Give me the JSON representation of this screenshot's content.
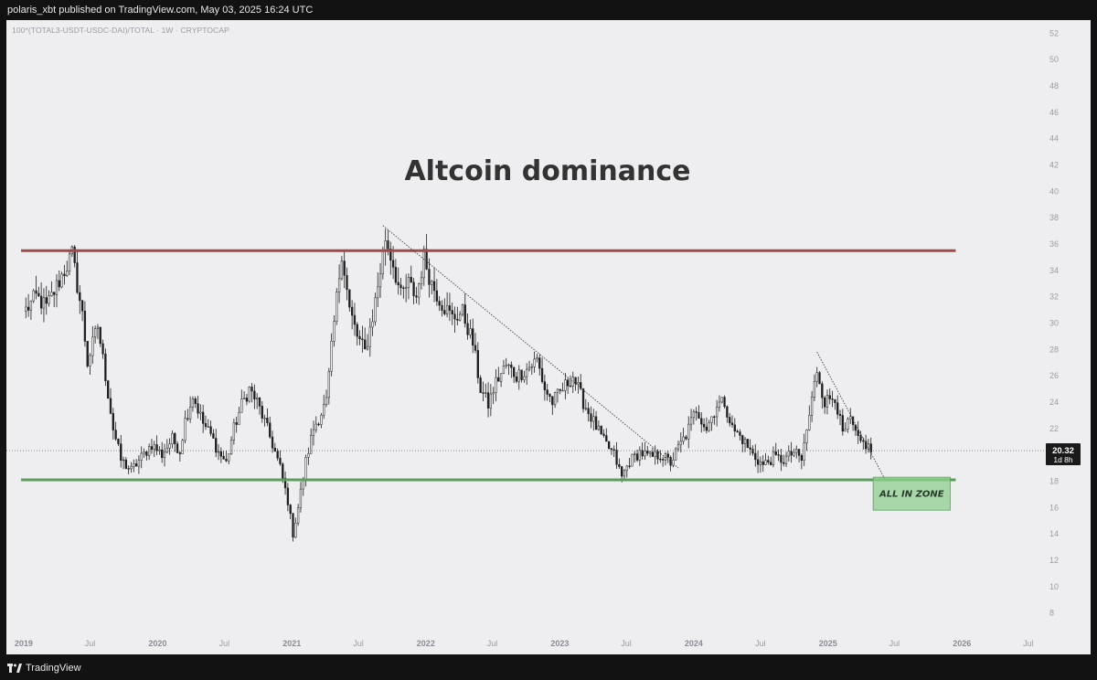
{
  "header": {
    "publish_line": "polaris_xbt published on TradingView.com, May 03, 2025 16:24 UTC"
  },
  "footer": {
    "brand": "TradingView",
    "logo_icon": "tradingview-logo-icon"
  },
  "chart_data": {
    "type": "candlestick",
    "symbol": "100*(TOTAL3-USDT-USDC-DAI)/TOTAL · 1W · CRYPTOCAP",
    "title": "Altcoin dominance",
    "xlabel": "",
    "ylabel": "",
    "ylim": [
      7,
      53
    ],
    "xlim": [
      "2018-11-15",
      "2026-08-15"
    ],
    "y_ticks": [
      8,
      10,
      12,
      14,
      16,
      18,
      20,
      22,
      24,
      26,
      28,
      30,
      32,
      34,
      36,
      38,
      40,
      42,
      44,
      46,
      48,
      50,
      52
    ],
    "x_ticks": [
      {
        "label": "2019",
        "date": "2019-01-01",
        "bold": true
      },
      {
        "label": "Jul",
        "date": "2019-07-01",
        "bold": false
      },
      {
        "label": "2020",
        "date": "2020-01-01",
        "bold": true
      },
      {
        "label": "Jul",
        "date": "2020-07-01",
        "bold": false
      },
      {
        "label": "2021",
        "date": "2021-01-01",
        "bold": true
      },
      {
        "label": "Jul",
        "date": "2021-07-01",
        "bold": false
      },
      {
        "label": "2022",
        "date": "2022-01-01",
        "bold": true
      },
      {
        "label": "Jul",
        "date": "2022-07-01",
        "bold": false
      },
      {
        "label": "2023",
        "date": "2023-01-01",
        "bold": true
      },
      {
        "label": "Jul",
        "date": "2023-07-01",
        "bold": false
      },
      {
        "label": "2024",
        "date": "2024-01-01",
        "bold": true
      },
      {
        "label": "Jul",
        "date": "2024-07-01",
        "bold": false
      },
      {
        "label": "2025",
        "date": "2025-01-01",
        "bold": true
      },
      {
        "label": "Jul",
        "date": "2025-07-01",
        "bold": false
      },
      {
        "label": "2026",
        "date": "2026-01-01",
        "bold": true
      },
      {
        "label": "Jul",
        "date": "2026-07-01",
        "bold": false
      }
    ],
    "series_path": [
      [
        "2019-01-07",
        31.0
      ],
      [
        "2019-02-04",
        32.0
      ],
      [
        "2019-03-04",
        31.2
      ],
      [
        "2019-04-08",
        33.2
      ],
      [
        "2019-05-13",
        35.2
      ],
      [
        "2019-06-10",
        30.6
      ],
      [
        "2019-06-24",
        27.0
      ],
      [
        "2019-07-22",
        29.8
      ],
      [
        "2019-08-12",
        26.0
      ],
      [
        "2019-09-02",
        22.0
      ],
      [
        "2019-09-23",
        19.6
      ],
      [
        "2019-10-21",
        18.8
      ],
      [
        "2019-11-18",
        19.8
      ],
      [
        "2019-12-16",
        20.8
      ],
      [
        "2020-01-13",
        20.0
      ],
      [
        "2020-02-10",
        21.2
      ],
      [
        "2020-03-02",
        20.3
      ],
      [
        "2020-03-16",
        22.6
      ],
      [
        "2020-04-06",
        24.5
      ],
      [
        "2020-05-04",
        22.4
      ],
      [
        "2020-05-25",
        21.5
      ],
      [
        "2020-06-15",
        20.2
      ],
      [
        "2020-07-06",
        19.4
      ],
      [
        "2020-07-27",
        22.0
      ],
      [
        "2020-08-17",
        23.8
      ],
      [
        "2020-09-07",
        25.0
      ],
      [
        "2020-09-28",
        24.0
      ],
      [
        "2020-10-19",
        22.5
      ],
      [
        "2020-11-09",
        20.8
      ],
      [
        "2020-11-30",
        19.0
      ],
      [
        "2020-12-21",
        16.5
      ],
      [
        "2021-01-04",
        14.0
      ],
      [
        "2021-01-18",
        16.0
      ],
      [
        "2021-02-08",
        19.5
      ],
      [
        "2021-03-01",
        22.0
      ],
      [
        "2021-04-05",
        24.0
      ],
      [
        "2021-04-26",
        30.0
      ],
      [
        "2021-05-17",
        35.5
      ],
      [
        "2021-06-07",
        31.0
      ],
      [
        "2021-06-28",
        29.0
      ],
      [
        "2021-07-19",
        27.8
      ],
      [
        "2021-08-09",
        30.5
      ],
      [
        "2021-08-30",
        34.0
      ],
      [
        "2021-09-13",
        36.5
      ],
      [
        "2021-10-04",
        34.5
      ],
      [
        "2021-10-25",
        32.0
      ],
      [
        "2021-11-15",
        33.0
      ],
      [
        "2021-12-06",
        32.0
      ],
      [
        "2021-12-27",
        35.0
      ],
      [
        "2022-01-17",
        33.0
      ],
      [
        "2022-02-14",
        31.5
      ],
      [
        "2022-03-14",
        30.4
      ],
      [
        "2022-04-11",
        30.8
      ],
      [
        "2022-05-09",
        28.5
      ],
      [
        "2022-05-30",
        25.0
      ],
      [
        "2022-06-20",
        23.8
      ],
      [
        "2022-07-11",
        25.5
      ],
      [
        "2022-08-08",
        26.8
      ],
      [
        "2022-09-05",
        26.0
      ],
      [
        "2022-10-03",
        26.5
      ],
      [
        "2022-10-31",
        27.2
      ],
      [
        "2022-11-21",
        25.0
      ],
      [
        "2022-12-12",
        24.0
      ],
      [
        "2023-01-09",
        25.0
      ],
      [
        "2023-02-06",
        26.0
      ],
      [
        "2023-03-06",
        24.0
      ],
      [
        "2023-04-03",
        22.5
      ],
      [
        "2023-05-01",
        21.0
      ],
      [
        "2023-05-29",
        20.0
      ],
      [
        "2023-06-19",
        18.3
      ],
      [
        "2023-07-10",
        19.5
      ],
      [
        "2023-08-07",
        20.2
      ],
      [
        "2023-09-04",
        19.8
      ],
      [
        "2023-10-02",
        20.0
      ],
      [
        "2023-10-30",
        19.4
      ],
      [
        "2023-11-20",
        20.5
      ],
      [
        "2023-12-11",
        21.5
      ],
      [
        "2024-01-08",
        23.5
      ],
      [
        "2024-02-05",
        22.0
      ],
      [
        "2024-03-04",
        23.8
      ],
      [
        "2024-03-25",
        24.0
      ],
      [
        "2024-04-15",
        22.0
      ],
      [
        "2024-05-13",
        21.2
      ],
      [
        "2024-06-10",
        20.0
      ],
      [
        "2024-07-08",
        19.2
      ],
      [
        "2024-08-05",
        19.8
      ],
      [
        "2024-09-02",
        19.6
      ],
      [
        "2024-09-30",
        20.2
      ],
      [
        "2024-10-21",
        19.6
      ],
      [
        "2024-11-11",
        23.0
      ],
      [
        "2024-12-02",
        26.5
      ],
      [
        "2024-12-23",
        24.0
      ],
      [
        "2025-01-20",
        24.5
      ],
      [
        "2025-02-10",
        21.5
      ],
      [
        "2025-03-03",
        22.6
      ],
      [
        "2025-03-24",
        21.0
      ],
      [
        "2025-04-14",
        20.8
      ],
      [
        "2025-04-28",
        20.32
      ]
    ],
    "overlays": {
      "resistance": {
        "y": 35.5,
        "x_start": "2018-12-25",
        "x_end": "2025-12-15",
        "color": "#a24a4a"
      },
      "support": {
        "y": 18.1,
        "x_start": "2018-12-25",
        "x_end": "2025-12-15",
        "color": "#5a9e5a"
      },
      "trendline_1": {
        "from": [
          "2021-09-06",
          37.4
        ],
        "to": [
          "2023-11-20",
          19.0
        ]
      },
      "trendline_2": {
        "from": [
          "2024-12-02",
          27.8
        ],
        "to": [
          "2025-06-08",
          18.0
        ]
      },
      "zone": {
        "label": "ALL IN ZONE",
        "x_start": "2025-05-04",
        "x_end": "2025-11-30",
        "y_low": 15.8,
        "y_high": 18.3,
        "color": "#8fcf8f"
      }
    },
    "last_price": {
      "value": "20.32",
      "countdown": "1d 8h"
    },
    "grid": false,
    "legend": "none"
  }
}
